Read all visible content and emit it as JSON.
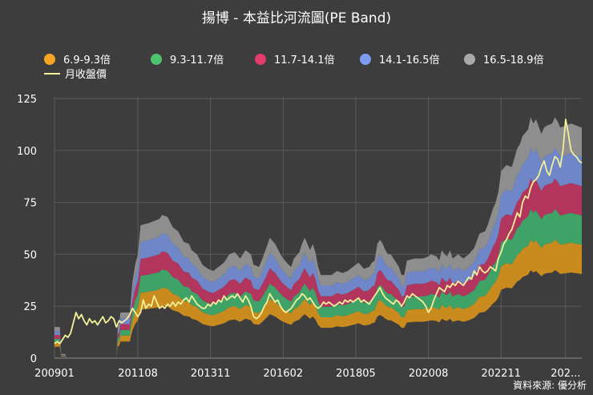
{
  "title": "揚博 - 本益比河流圖(PE Band)",
  "source": "資料來源: 優分析",
  "chart_data": {
    "type": "area",
    "title": "揚博 - 本益比河流圖(PE Band)",
    "ylim": [
      0,
      125
    ],
    "yticks": [
      0,
      25,
      50,
      75,
      100,
      125
    ],
    "xticks": [
      {
        "label": "200901",
        "t": 0
      },
      {
        "label": "201108",
        "t": 31
      },
      {
        "label": "201311",
        "t": 58
      },
      {
        "label": "201602",
        "t": 85
      },
      {
        "label": "201805",
        "t": 112
      },
      {
        "label": "202008",
        "t": 139
      },
      {
        "label": "202211",
        "t": 166
      },
      {
        "label": "202...",
        "t": 190
      }
    ],
    "t_range": [
      0,
      196
    ],
    "bands": [
      {
        "name": "6.9-9.3倍",
        "color": "#c98a1e",
        "legend_color": "#f5a623"
      },
      {
        "name": "9.3-11.7倍",
        "color": "#3fa368",
        "legend_color": "#4cc36e"
      },
      {
        "name": "11.7-14.1倍",
        "color": "#b2355e",
        "legend_color": "#e23c6c"
      },
      {
        "name": "14.1-16.5倍",
        "color": "#6f86c8",
        "legend_color": "#7b9cf0"
      },
      {
        "name": "16.5-18.9倍",
        "color": "#8e8e8e",
        "legend_color": "#a9a9a9"
      }
    ],
    "base_multiple": 6.9,
    "top_multiple": 18.9,
    "band_top_series": [
      [
        0,
        15
      ],
      [
        2,
        15
      ],
      [
        2.5,
        2
      ],
      [
        4,
        2
      ],
      [
        4.5,
        0
      ],
      [
        23,
        0
      ],
      [
        23.5,
        16
      ],
      [
        24,
        16
      ],
      [
        24.5,
        22
      ],
      [
        28,
        22
      ],
      [
        28.5,
        30
      ],
      [
        29,
        37
      ],
      [
        30,
        45
      ],
      [
        31,
        50
      ],
      [
        32,
        64
      ],
      [
        35,
        65
      ],
      [
        37,
        66
      ],
      [
        39,
        67
      ],
      [
        40,
        69
      ],
      [
        42,
        68
      ],
      [
        44,
        63
      ],
      [
        46,
        61
      ],
      [
        48,
        56
      ],
      [
        50,
        55
      ],
      [
        51,
        52
      ],
      [
        53,
        50
      ],
      [
        55,
        45
      ],
      [
        57,
        43
      ],
      [
        59,
        42
      ],
      [
        61,
        44
      ],
      [
        63,
        46
      ],
      [
        65,
        50
      ],
      [
        67,
        51
      ],
      [
        69,
        48
      ],
      [
        71,
        52
      ],
      [
        73,
        50
      ],
      [
        74,
        45
      ],
      [
        76,
        44
      ],
      [
        77,
        47
      ],
      [
        79,
        54
      ],
      [
        80,
        58
      ],
      [
        82,
        55
      ],
      [
        84,
        50
      ],
      [
        85,
        48
      ],
      [
        87,
        45
      ],
      [
        88,
        44
      ],
      [
        89,
        48
      ],
      [
        91,
        51
      ],
      [
        92,
        55
      ],
      [
        93,
        58
      ],
      [
        94,
        55
      ],
      [
        95,
        52
      ],
      [
        96,
        55
      ],
      [
        97,
        51
      ],
      [
        98,
        44
      ],
      [
        99,
        40
      ],
      [
        101,
        40
      ],
      [
        103,
        40
      ],
      [
        105,
        42
      ],
      [
        107,
        41
      ],
      [
        109,
        42
      ],
      [
        111,
        44
      ],
      [
        113,
        46
      ],
      [
        115,
        43
      ],
      [
        117,
        44
      ],
      [
        118,
        46
      ],
      [
        119,
        47
      ],
      [
        120,
        55
      ],
      [
        121,
        57
      ],
      [
        122,
        55
      ],
      [
        123,
        52
      ],
      [
        124,
        50
      ],
      [
        125,
        50
      ],
      [
        126,
        48
      ],
      [
        127,
        46
      ],
      [
        128,
        44
      ],
      [
        129,
        40
      ],
      [
        130,
        40
      ],
      [
        131,
        47
      ],
      [
        134,
        48
      ],
      [
        137,
        48
      ],
      [
        139,
        49
      ],
      [
        140,
        50
      ],
      [
        142,
        49
      ],
      [
        143,
        47
      ],
      [
        144,
        52
      ],
      [
        145,
        50
      ],
      [
        146,
        49
      ],
      [
        147,
        52
      ],
      [
        148,
        48
      ],
      [
        150,
        50
      ],
      [
        152,
        48
      ],
      [
        154,
        50
      ],
      [
        156,
        53
      ],
      [
        158,
        60
      ],
      [
        160,
        61
      ],
      [
        161,
        64
      ],
      [
        162,
        68
      ],
      [
        163,
        72
      ],
      [
        164,
        75
      ],
      [
        165,
        80
      ],
      [
        166,
        90
      ],
      [
        168,
        93
      ],
      [
        170,
        92
      ],
      [
        172,
        101
      ],
      [
        173,
        103
      ],
      [
        174,
        107
      ],
      [
        176,
        110
      ],
      [
        177,
        116
      ],
      [
        178,
        113
      ],
      [
        179,
        115
      ],
      [
        181,
        108
      ],
      [
        182,
        111
      ],
      [
        183,
        112
      ],
      [
        185,
        113
      ],
      [
        186,
        116
      ],
      [
        187,
        114
      ],
      [
        188,
        111
      ],
      [
        190,
        112
      ],
      [
        192,
        113
      ],
      [
        194,
        112
      ],
      [
        196,
        111
      ]
    ],
    "price_series": [
      [
        0,
        7
      ],
      [
        1,
        8
      ],
      [
        2,
        7
      ],
      [
        3,
        9
      ],
      [
        4,
        11
      ],
      [
        5,
        10
      ],
      [
        6,
        12
      ],
      [
        7,
        17
      ],
      [
        8,
        22
      ],
      [
        9,
        19
      ],
      [
        10,
        21
      ],
      [
        11,
        18
      ],
      [
        12,
        16
      ],
      [
        13,
        19
      ],
      [
        14,
        17
      ],
      [
        15,
        18
      ],
      [
        16,
        16
      ],
      [
        17,
        18
      ],
      [
        18,
        20
      ],
      [
        19,
        17
      ],
      [
        20,
        18
      ],
      [
        21,
        20
      ],
      [
        22,
        19
      ],
      [
        23,
        15
      ],
      [
        24,
        18
      ],
      [
        25,
        17
      ],
      [
        26,
        18
      ],
      [
        27,
        19
      ],
      [
        28,
        21
      ],
      [
        29,
        24
      ],
      [
        30,
        22
      ],
      [
        31,
        20
      ],
      [
        32,
        22
      ],
      [
        33,
        28
      ],
      [
        34,
        24
      ],
      [
        35,
        26
      ],
      [
        36,
        25
      ],
      [
        37,
        30
      ],
      [
        38,
        27
      ],
      [
        39,
        24
      ],
      [
        40,
        25
      ],
      [
        41,
        24
      ],
      [
        42,
        26
      ],
      [
        43,
        25
      ],
      [
        44,
        27
      ],
      [
        45,
        25
      ],
      [
        46,
        27
      ],
      [
        47,
        26
      ],
      [
        48,
        28
      ],
      [
        49,
        29
      ],
      [
        50,
        27
      ],
      [
        51,
        30
      ],
      [
        52,
        28
      ],
      [
        53,
        26
      ],
      [
        54,
        25
      ],
      [
        55,
        24
      ],
      [
        56,
        24
      ],
      [
        57,
        26
      ],
      [
        58,
        25
      ],
      [
        59,
        27
      ],
      [
        60,
        26
      ],
      [
        61,
        28
      ],
      [
        62,
        27
      ],
      [
        63,
        30
      ],
      [
        64,
        28
      ],
      [
        65,
        29
      ],
      [
        66,
        30
      ],
      [
        67,
        29
      ],
      [
        68,
        31
      ],
      [
        69,
        29
      ],
      [
        70,
        27
      ],
      [
        71,
        30
      ],
      [
        72,
        28
      ],
      [
        73,
        25
      ],
      [
        74,
        20
      ],
      [
        75,
        19
      ],
      [
        76,
        20
      ],
      [
        77,
        22
      ],
      [
        78,
        25
      ],
      [
        79,
        27
      ],
      [
        80,
        31
      ],
      [
        81,
        29
      ],
      [
        82,
        27
      ],
      [
        83,
        28
      ],
      [
        84,
        25
      ],
      [
        85,
        23
      ],
      [
        86,
        22
      ],
      [
        87,
        23
      ],
      [
        88,
        24
      ],
      [
        89,
        26
      ],
      [
        90,
        28
      ],
      [
        91,
        29
      ],
      [
        92,
        31
      ],
      [
        93,
        30
      ],
      [
        94,
        28
      ],
      [
        95,
        29
      ],
      [
        96,
        27
      ],
      [
        97,
        25
      ],
      [
        98,
        24
      ],
      [
        99,
        25
      ],
      [
        100,
        27
      ],
      [
        101,
        26
      ],
      [
        102,
        27
      ],
      [
        103,
        26
      ],
      [
        104,
        25
      ],
      [
        105,
        26
      ],
      [
        106,
        27
      ],
      [
        107,
        26
      ],
      [
        108,
        28
      ],
      [
        109,
        27
      ],
      [
        110,
        28
      ],
      [
        111,
        27
      ],
      [
        112,
        28
      ],
      [
        113,
        29
      ],
      [
        114,
        27
      ],
      [
        115,
        28
      ],
      [
        116,
        27
      ],
      [
        117,
        26
      ],
      [
        118,
        28
      ],
      [
        119,
        30
      ],
      [
        120,
        32
      ],
      [
        121,
        34
      ],
      [
        122,
        31
      ],
      [
        123,
        29
      ],
      [
        124,
        28
      ],
      [
        125,
        27
      ],
      [
        126,
        26
      ],
      [
        127,
        28
      ],
      [
        128,
        27
      ],
      [
        129,
        25
      ],
      [
        130,
        27
      ],
      [
        131,
        30
      ],
      [
        132,
        29
      ],
      [
        133,
        31
      ],
      [
        134,
        30
      ],
      [
        135,
        29
      ],
      [
        136,
        28
      ],
      [
        137,
        27
      ],
      [
        138,
        25
      ],
      [
        139,
        22
      ],
      [
        140,
        24
      ],
      [
        141,
        28
      ],
      [
        142,
        31
      ],
      [
        143,
        34
      ],
      [
        144,
        33
      ],
      [
        145,
        32
      ],
      [
        146,
        35
      ],
      [
        147,
        34
      ],
      [
        148,
        36
      ],
      [
        149,
        35
      ],
      [
        150,
        37
      ],
      [
        151,
        36
      ],
      [
        152,
        35
      ],
      [
        153,
        37
      ],
      [
        154,
        39
      ],
      [
        155,
        38
      ],
      [
        156,
        42
      ],
      [
        157,
        40
      ],
      [
        158,
        44
      ],
      [
        159,
        42
      ],
      [
        160,
        41
      ],
      [
        161,
        42
      ],
      [
        162,
        44
      ],
      [
        163,
        43
      ],
      [
        164,
        42
      ],
      [
        165,
        48
      ],
      [
        166,
        51
      ],
      [
        167,
        55
      ],
      [
        168,
        57
      ],
      [
        169,
        60
      ],
      [
        170,
        62
      ],
      [
        171,
        66
      ],
      [
        172,
        70
      ],
      [
        173,
        68
      ],
      [
        174,
        75
      ],
      [
        175,
        78
      ],
      [
        176,
        77
      ],
      [
        177,
        82
      ],
      [
        178,
        85
      ],
      [
        179,
        86
      ],
      [
        180,
        88
      ],
      [
        181,
        92
      ],
      [
        182,
        95
      ],
      [
        183,
        90
      ],
      [
        184,
        88
      ],
      [
        185,
        93
      ],
      [
        186,
        97
      ],
      [
        187,
        96
      ],
      [
        188,
        92
      ],
      [
        189,
        100
      ],
      [
        190,
        115
      ],
      [
        191,
        108
      ],
      [
        192,
        100
      ],
      [
        193,
        98
      ],
      [
        194,
        97
      ],
      [
        195,
        95
      ],
      [
        196,
        94
      ]
    ],
    "line_series_name": "月收盤價",
    "line_color": "#f3f09a"
  }
}
